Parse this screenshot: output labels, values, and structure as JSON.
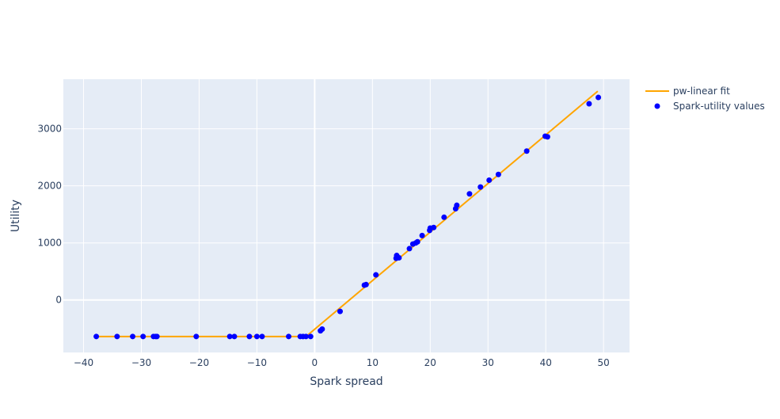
{
  "chart_data": {
    "type": "scatter",
    "xlabel": "Spark spread",
    "ylabel": "Utility",
    "xlim": [
      -43.5,
      54.5
    ],
    "ylim": [
      -920,
      3870
    ],
    "x_ticks": [
      -40,
      -30,
      -20,
      -10,
      0,
      10,
      20,
      30,
      40,
      50
    ],
    "x_tick_labels": [
      "−40",
      "−30",
      "−20",
      "−10",
      "0",
      "10",
      "20",
      "30",
      "40",
      "50"
    ],
    "y_ticks": [
      0,
      1000,
      2000,
      3000
    ],
    "y_tick_labels": [
      "0",
      "1000",
      "2000",
      "3000"
    ],
    "grid": true,
    "legend_position": "top-right",
    "colors": {
      "plot_bg": "#e5ecf6",
      "grid": "#ffffff",
      "fit": "#ffa500",
      "points": "#0000ff",
      "text": "#2a3f5f"
    },
    "series": [
      {
        "name": "pw-linear fit",
        "mode": "line",
        "x": [
          -38,
          -1.5,
          49
        ],
        "y": [
          -640,
          -640,
          3660
        ]
      },
      {
        "name": "Spark-utility values",
        "mode": "markers",
        "points": [
          [
            -37.8,
            -640
          ],
          [
            -34.2,
            -640
          ],
          [
            -31.5,
            -640
          ],
          [
            -29.7,
            -640
          ],
          [
            -27.9,
            -640
          ],
          [
            -27.5,
            -640
          ],
          [
            -27.3,
            -640
          ],
          [
            -20.5,
            -640
          ],
          [
            -14.7,
            -640
          ],
          [
            -13.9,
            -640
          ],
          [
            -11.3,
            -640
          ],
          [
            -10.0,
            -640
          ],
          [
            -9.1,
            -640
          ],
          [
            -4.5,
            -640
          ],
          [
            -2.5,
            -640
          ],
          [
            -2.0,
            -640
          ],
          [
            -1.5,
            -640
          ],
          [
            -0.7,
            -640
          ],
          [
            1.0,
            -540
          ],
          [
            1.3,
            -510
          ],
          [
            4.4,
            -200
          ],
          [
            8.6,
            260
          ],
          [
            8.9,
            270
          ],
          [
            10.6,
            440
          ],
          [
            14.1,
            730
          ],
          [
            14.2,
            780
          ],
          [
            14.6,
            740
          ],
          [
            16.4,
            900
          ],
          [
            17.0,
            980
          ],
          [
            17.5,
            1000
          ],
          [
            17.8,
            1020
          ],
          [
            18.6,
            1130
          ],
          [
            19.9,
            1220
          ],
          [
            20.0,
            1260
          ],
          [
            20.6,
            1270
          ],
          [
            22.4,
            1450
          ],
          [
            24.4,
            1600
          ],
          [
            24.6,
            1660
          ],
          [
            26.8,
            1860
          ],
          [
            28.7,
            1980
          ],
          [
            30.2,
            2100
          ],
          [
            31.8,
            2200
          ],
          [
            36.7,
            2610
          ],
          [
            39.9,
            2870
          ],
          [
            40.3,
            2860
          ],
          [
            47.5,
            3440
          ],
          [
            49.1,
            3550
          ]
        ]
      }
    ]
  }
}
